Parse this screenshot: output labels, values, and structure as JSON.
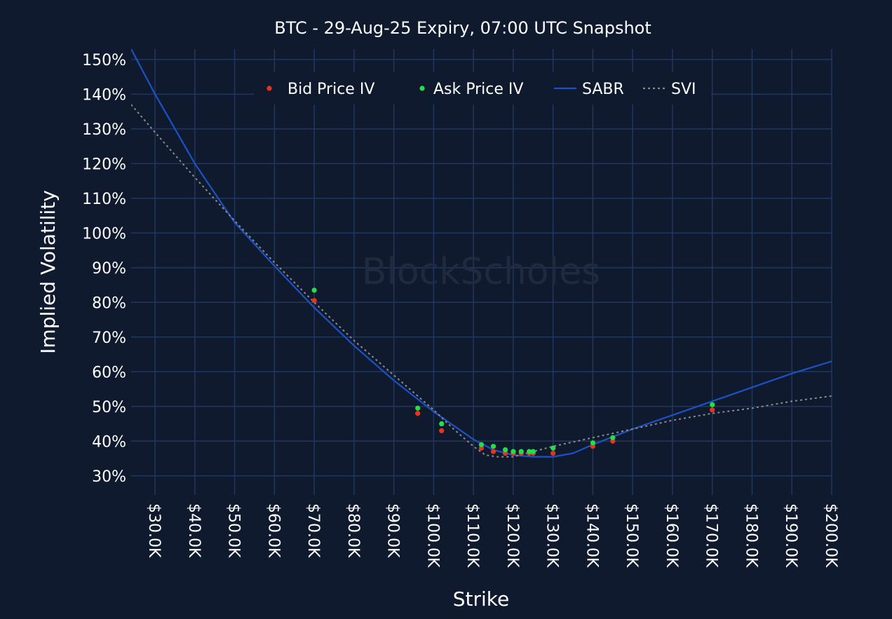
{
  "chart_data": {
    "type": "scatter",
    "title": "BTC - 29-Aug-25 Expiry, 07:00 UTC Snapshot",
    "xlabel": "Strike",
    "ylabel": "Implied Volatility",
    "watermark": "BlockScholes",
    "xlim": [
      24000,
      200000
    ],
    "ylim": [
      24.5,
      153
    ],
    "x_ticks": [
      30000,
      40000,
      50000,
      60000,
      70000,
      80000,
      90000,
      100000,
      110000,
      120000,
      130000,
      140000,
      150000,
      160000,
      170000,
      180000,
      190000,
      200000
    ],
    "x_tick_labels": [
      "$30.0K",
      "$40.0K",
      "$50.0K",
      "$60.0K",
      "$70.0K",
      "$80.0K",
      "$90.0K",
      "$100.0K",
      "$110.0K",
      "$120.0K",
      "$130.0K",
      "$140.0K",
      "$150.0K",
      "$160.0K",
      "$170.0K",
      "$180.0K",
      "$190.0K",
      "$200.0K"
    ],
    "y_ticks": [
      30,
      40,
      50,
      60,
      70,
      80,
      90,
      100,
      110,
      120,
      130,
      140,
      150
    ],
    "y_tick_labels": [
      "30%",
      "40%",
      "50%",
      "60%",
      "70%",
      "80%",
      "90%",
      "100%",
      "110%",
      "120%",
      "130%",
      "140%",
      "150%"
    ],
    "grid": true,
    "legend_position": "top",
    "series": [
      {
        "name": "Bid Price IV",
        "kind": "markers",
        "color": "#e8341c",
        "x": [
          70000,
          96000,
          102000,
          112000,
          115000,
          118000,
          120000,
          122000,
          124000,
          125000,
          130000,
          140000,
          145000,
          170000
        ],
        "y": [
          80.5,
          48,
          43,
          38,
          37,
          36.5,
          36.5,
          36.5,
          36.5,
          36.5,
          36.5,
          38.5,
          40,
          49
        ]
      },
      {
        "name": "Ask Price IV",
        "kind": "markers",
        "color": "#22e04a",
        "x": [
          70000,
          96000,
          102000,
          112000,
          115000,
          118000,
          120000,
          122000,
          124000,
          125000,
          130000,
          140000,
          145000,
          170000
        ],
        "y": [
          83.5,
          49.5,
          45,
          39,
          38.5,
          37.5,
          37,
          37,
          37,
          37,
          38,
          39.5,
          41,
          50.5
        ]
      },
      {
        "name": "SABR",
        "kind": "line",
        "color": "#1c52c4",
        "x": [
          24000,
          30000,
          40000,
          50000,
          60000,
          70000,
          80000,
          90000,
          100000,
          110000,
          115000,
          120000,
          125000,
          130000,
          135000,
          140000,
          150000,
          160000,
          170000,
          180000,
          190000,
          200000
        ],
        "y": [
          153,
          140,
          120,
          103,
          90.5,
          78.5,
          67.5,
          57.5,
          48.5,
          40.5,
          37.5,
          36,
          35.5,
          35.5,
          36.5,
          39,
          43.5,
          47.5,
          51.5,
          55.5,
          59.5,
          63
        ]
      },
      {
        "name": "SVI",
        "kind": "dotted",
        "color": "#8a8a8a",
        "x": [
          24000,
          30000,
          40000,
          50000,
          60000,
          70000,
          80000,
          90000,
          100000,
          105000,
          110000,
          113000,
          116000,
          120000,
          125000,
          130000,
          140000,
          150000,
          160000,
          170000,
          180000,
          190000,
          200000
        ],
        "y": [
          137,
          129,
          116,
          103.5,
          91.5,
          80,
          69,
          59,
          49,
          43.5,
          38.5,
          36,
          35.5,
          35.5,
          37,
          38.5,
          41,
          43.5,
          46,
          48,
          49.5,
          51.5,
          53
        ]
      }
    ]
  }
}
